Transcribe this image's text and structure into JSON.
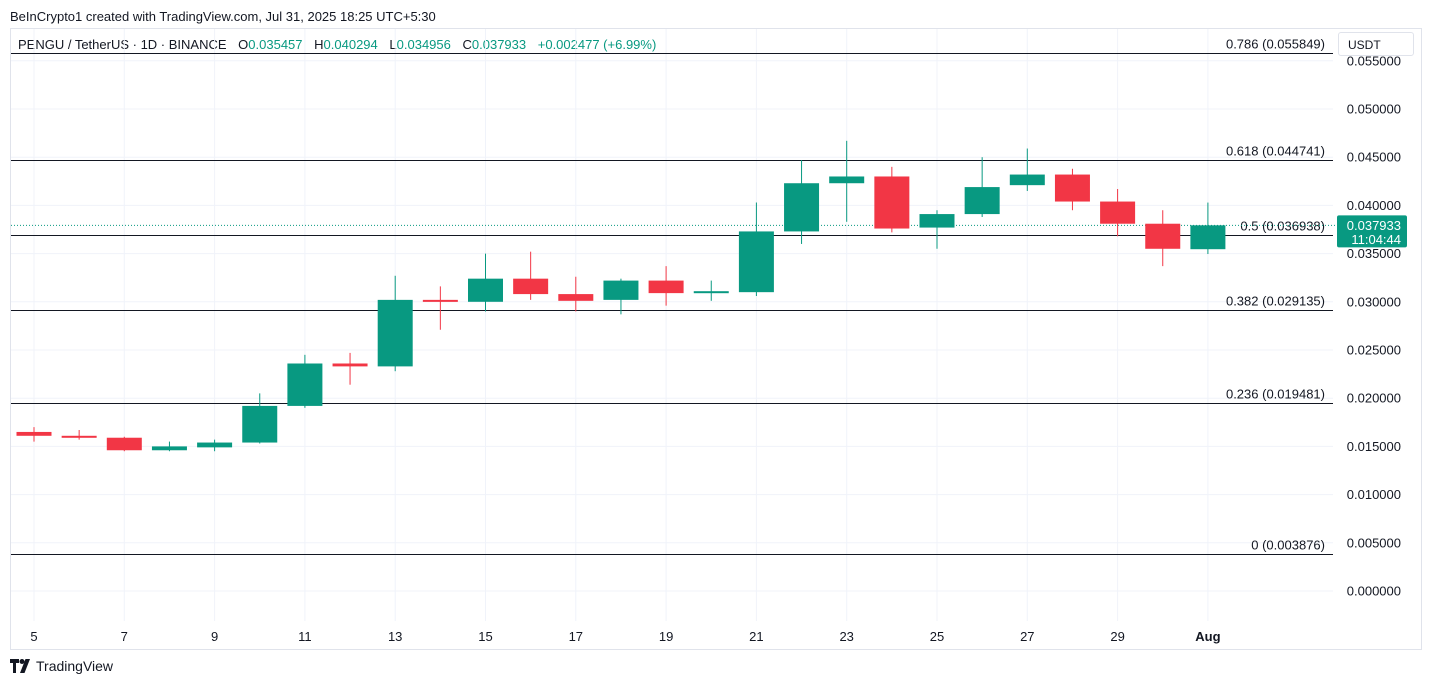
{
  "header": {
    "credit": "BeInCrypto1 created with TradingView.com, Jul 31, 2025 18:25 UTC+5:30"
  },
  "symbol": {
    "name": "PENGU / TetherUS · 1D · BINANCE",
    "open_label": "O",
    "open": "0.035457",
    "high_label": "H",
    "high": "0.040294",
    "low_label": "L",
    "low": "0.034956",
    "close_label": "C",
    "close": "0.037933",
    "change": "+0.002477 (+6.99%)"
  },
  "currency": "USDT",
  "price_tag": {
    "price": "0.037933",
    "countdown": "11:04:44"
  },
  "footer": {
    "brand": "TradingView"
  },
  "colors": {
    "up": "#089981",
    "down": "#f23645",
    "tag": "#089981",
    "fib_line": "#131722",
    "grid": "#f0f3fa"
  },
  "chart_data": {
    "type": "candlestick",
    "ylim": [
      -0.003,
      0.0565
    ],
    "y_ticks": [
      "0.055000",
      "0.050000",
      "0.045000",
      "0.040000",
      "0.035000",
      "0.030000",
      "0.025000",
      "0.020000",
      "0.015000",
      "0.010000",
      "0.005000",
      "0.000000"
    ],
    "x_ticks": [
      "5",
      "7",
      "9",
      "11",
      "13",
      "15",
      "17",
      "19",
      "21",
      "23",
      "25",
      "27",
      "29",
      "Aug"
    ],
    "fib_levels": [
      {
        "label": "0.786 (0.055849)",
        "value": 0.055849
      },
      {
        "label": "0.618 (0.044741)",
        "value": 0.044741
      },
      {
        "label": "0.5 (0.036938)",
        "value": 0.036938
      },
      {
        "label": "0.382 (0.029135)",
        "value": 0.029135
      },
      {
        "label": "0.236 (0.019481)",
        "value": 0.019481
      },
      {
        "label": "0 (0.003876)",
        "value": 0.003876
      }
    ],
    "candles": [
      {
        "date": "Jul 5",
        "o": 0.0165,
        "h": 0.017,
        "l": 0.0155,
        "c": 0.0161
      },
      {
        "date": "Jul 6",
        "o": 0.0161,
        "h": 0.0167,
        "l": 0.0157,
        "c": 0.0159
      },
      {
        "date": "Jul 7",
        "o": 0.0159,
        "h": 0.016,
        "l": 0.0145,
        "c": 0.0146
      },
      {
        "date": "Jul 8",
        "o": 0.0146,
        "h": 0.0155,
        "l": 0.0145,
        "c": 0.015
      },
      {
        "date": "Jul 9",
        "o": 0.0149,
        "h": 0.0157,
        "l": 0.0145,
        "c": 0.0154
      },
      {
        "date": "Jul 10",
        "o": 0.0154,
        "h": 0.0205,
        "l": 0.0153,
        "c": 0.0192
      },
      {
        "date": "Jul 11",
        "o": 0.0192,
        "h": 0.0245,
        "l": 0.019,
        "c": 0.0236
      },
      {
        "date": "Jul 12",
        "o": 0.0236,
        "h": 0.0247,
        "l": 0.0214,
        "c": 0.0233
      },
      {
        "date": "Jul 13",
        "o": 0.0233,
        "h": 0.0327,
        "l": 0.0228,
        "c": 0.0302
      },
      {
        "date": "Jul 14",
        "o": 0.0302,
        "h": 0.0316,
        "l": 0.0271,
        "c": 0.03
      },
      {
        "date": "Jul 15",
        "o": 0.03,
        "h": 0.035,
        "l": 0.029,
        "c": 0.0324
      },
      {
        "date": "Jul 16",
        "o": 0.0324,
        "h": 0.0352,
        "l": 0.0302,
        "c": 0.0308
      },
      {
        "date": "Jul 17",
        "o": 0.0308,
        "h": 0.0326,
        "l": 0.029,
        "c": 0.0301
      },
      {
        "date": "Jul 18",
        "o": 0.0302,
        "h": 0.0324,
        "l": 0.0287,
        "c": 0.0322
      },
      {
        "date": "Jul 19",
        "o": 0.0322,
        "h": 0.0337,
        "l": 0.0296,
        "c": 0.0309
      },
      {
        "date": "Jul 20",
        "o": 0.0309,
        "h": 0.0322,
        "l": 0.0301,
        "c": 0.0311
      },
      {
        "date": "Jul 21",
        "o": 0.031,
        "h": 0.0403,
        "l": 0.0306,
        "c": 0.0373
      },
      {
        "date": "Jul 22",
        "o": 0.0373,
        "h": 0.0447,
        "l": 0.036,
        "c": 0.0423
      },
      {
        "date": "Jul 23",
        "o": 0.0423,
        "h": 0.0467,
        "l": 0.0383,
        "c": 0.043
      },
      {
        "date": "Jul 24",
        "o": 0.043,
        "h": 0.044,
        "l": 0.0372,
        "c": 0.0376
      },
      {
        "date": "Jul 25",
        "o": 0.0377,
        "h": 0.0395,
        "l": 0.0355,
        "c": 0.0391
      },
      {
        "date": "Jul 26",
        "o": 0.0391,
        "h": 0.045,
        "l": 0.0388,
        "c": 0.0419
      },
      {
        "date": "Jul 27",
        "o": 0.0421,
        "h": 0.0459,
        "l": 0.0415,
        "c": 0.0432
      },
      {
        "date": "Jul 28",
        "o": 0.0432,
        "h": 0.0438,
        "l": 0.0395,
        "c": 0.0404
      },
      {
        "date": "Jul 29",
        "o": 0.0404,
        "h": 0.0417,
        "l": 0.0368,
        "c": 0.0381
      },
      {
        "date": "Jul 30",
        "o": 0.0381,
        "h": 0.0395,
        "l": 0.0337,
        "c": 0.0355
      },
      {
        "date": "Jul 31",
        "o": 0.035457,
        "h": 0.040294,
        "l": 0.034956,
        "c": 0.037933
      }
    ]
  }
}
